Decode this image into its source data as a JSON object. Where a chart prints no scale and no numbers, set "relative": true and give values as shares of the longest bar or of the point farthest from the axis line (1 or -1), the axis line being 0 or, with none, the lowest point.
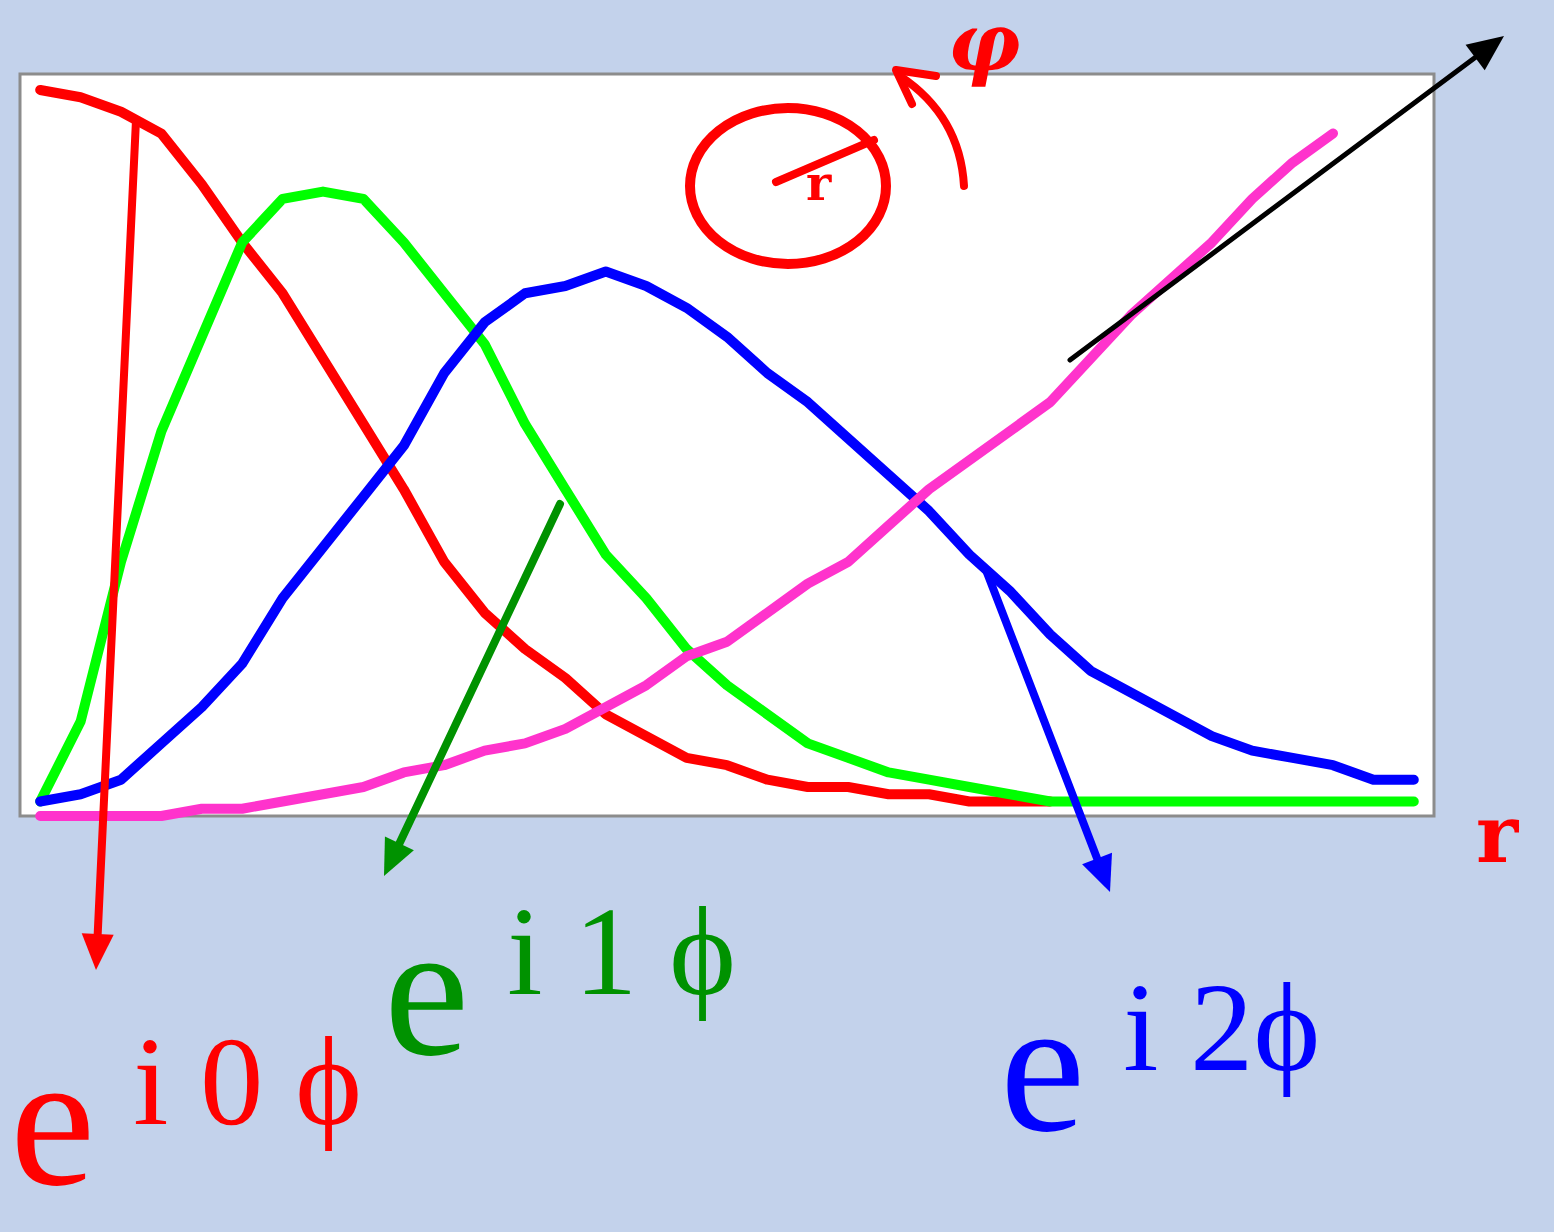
{
  "chart_data": {
    "type": "line",
    "relative": true,
    "marker": "none",
    "legend": "bottom",
    "xlabel": "r",
    "annotations": [
      "r",
      "φ"
    ],
    "categories": [
      null,
      null,
      null,
      null,
      null,
      null,
      null,
      null,
      null,
      null,
      null,
      null,
      null,
      null,
      null,
      null,
      null,
      null,
      null,
      null,
      null,
      null,
      null,
      null,
      null,
      null,
      null,
      null,
      null,
      null,
      null,
      null,
      null,
      null,
      null
    ],
    "series": [
      {
        "name": "e$^{i 0 ϕ}$",
        "color": "#ff0000",
        "values": [
          1.0,
          0.99,
          0.97,
          0.94,
          0.87,
          0.79,
          0.72,
          0.63,
          0.54,
          0.45,
          0.35,
          0.28,
          0.23,
          0.19,
          0.14,
          0.11,
          0.08,
          0.07,
          0.05,
          0.04,
          0.04,
          0.03,
          0.03,
          0.02,
          0.02,
          0.02,
          null,
          null,
          null,
          null,
          null,
          null,
          null,
          null,
          null
        ]
      },
      {
        "name": "e$^{i 1 ϕ}$",
        "color": "#00ff00",
        "values": [
          0.02,
          0.13,
          0.35,
          0.53,
          0.66,
          0.79,
          0.85,
          0.86,
          0.85,
          0.79,
          0.72,
          0.65,
          0.54,
          0.45,
          0.36,
          0.3,
          0.23,
          0.18,
          0.14,
          0.1,
          0.08,
          0.06,
          0.05,
          0.04,
          0.03,
          0.02,
          0.02,
          0.02,
          0.02,
          0.02,
          0.02,
          0.02,
          0.02,
          0.02,
          0.02
        ]
      },
      {
        "name": "e$^{i 2ϕ}$",
        "color": "#0000ff",
        "values": [
          0.02,
          0.03,
          0.05,
          0.1,
          0.15,
          0.21,
          0.3,
          0.37,
          0.44,
          0.51,
          0.61,
          0.68,
          0.72,
          0.73,
          0.75,
          0.73,
          0.7,
          0.66,
          0.61,
          0.57,
          0.52,
          0.47,
          0.42,
          0.36,
          0.31,
          0.25,
          0.2,
          0.17,
          0.14,
          0.11,
          0.09,
          0.08,
          0.07,
          0.05,
          0.05
        ]
      },
      {
        "color": "#ff33cc",
        "values": [
          0,
          0,
          0,
          0,
          0.01,
          0.01,
          0.02,
          0.03,
          0.04,
          0.06,
          0.07,
          0.09,
          0.1,
          0.12,
          0.15,
          0.18,
          0.22,
          0.24,
          0.28,
          0.32,
          0.35,
          0.4,
          0.45,
          0.49,
          0.53,
          0.57,
          0.63,
          0.69,
          0.74,
          0.79,
          0.85,
          0.9,
          0.94,
          null,
          null
        ]
      }
    ]
  }
}
